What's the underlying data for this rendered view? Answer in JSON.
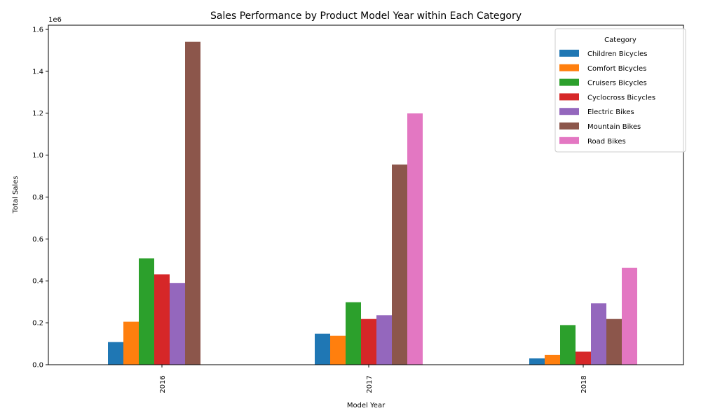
{
  "chart_data": {
    "type": "bar",
    "title": "Sales Performance by Product Model Year within Each Category",
    "xlabel": "Model Year",
    "ylabel": "Total Sales",
    "y_multiplier_label": "1e6",
    "categories": [
      "2016",
      "2017",
      "2018"
    ],
    "ylim": [
      0,
      1620000
    ],
    "yticks": [
      0,
      200000,
      400000,
      600000,
      800000,
      1000000,
      1200000,
      1400000,
      1600000
    ],
    "ytick_labels": [
      "0.0",
      "0.2",
      "0.4",
      "0.6",
      "0.8",
      "1.0",
      "1.2",
      "1.4",
      "1.6"
    ],
    "legend": {
      "title": "Category",
      "placement": "top-right"
    },
    "grid": false,
    "series": [
      {
        "name": "Children Bicycles",
        "color": "#1f77b4",
        "values": [
          108000,
          148000,
          30000
        ]
      },
      {
        "name": "Comfort Bicycles",
        "color": "#ff7f0e",
        "values": [
          205000,
          138000,
          47000
        ]
      },
      {
        "name": "Cruisers Bicycles",
        "color": "#2ca02c",
        "values": [
          507000,
          298000,
          189000
        ]
      },
      {
        "name": "Cyclocross Bicycles",
        "color": "#d62728",
        "values": [
          431000,
          218000,
          62000
        ]
      },
      {
        "name": "Electric Bikes",
        "color": "#9467bd",
        "values": [
          390000,
          236000,
          293000
        ]
      },
      {
        "name": "Mountain Bikes",
        "color": "#8c564b",
        "values": [
          1541000,
          955000,
          218000
        ]
      },
      {
        "name": "Road Bikes",
        "color": "#e377c2",
        "values": [
          0,
          1199000,
          462000
        ]
      }
    ]
  }
}
